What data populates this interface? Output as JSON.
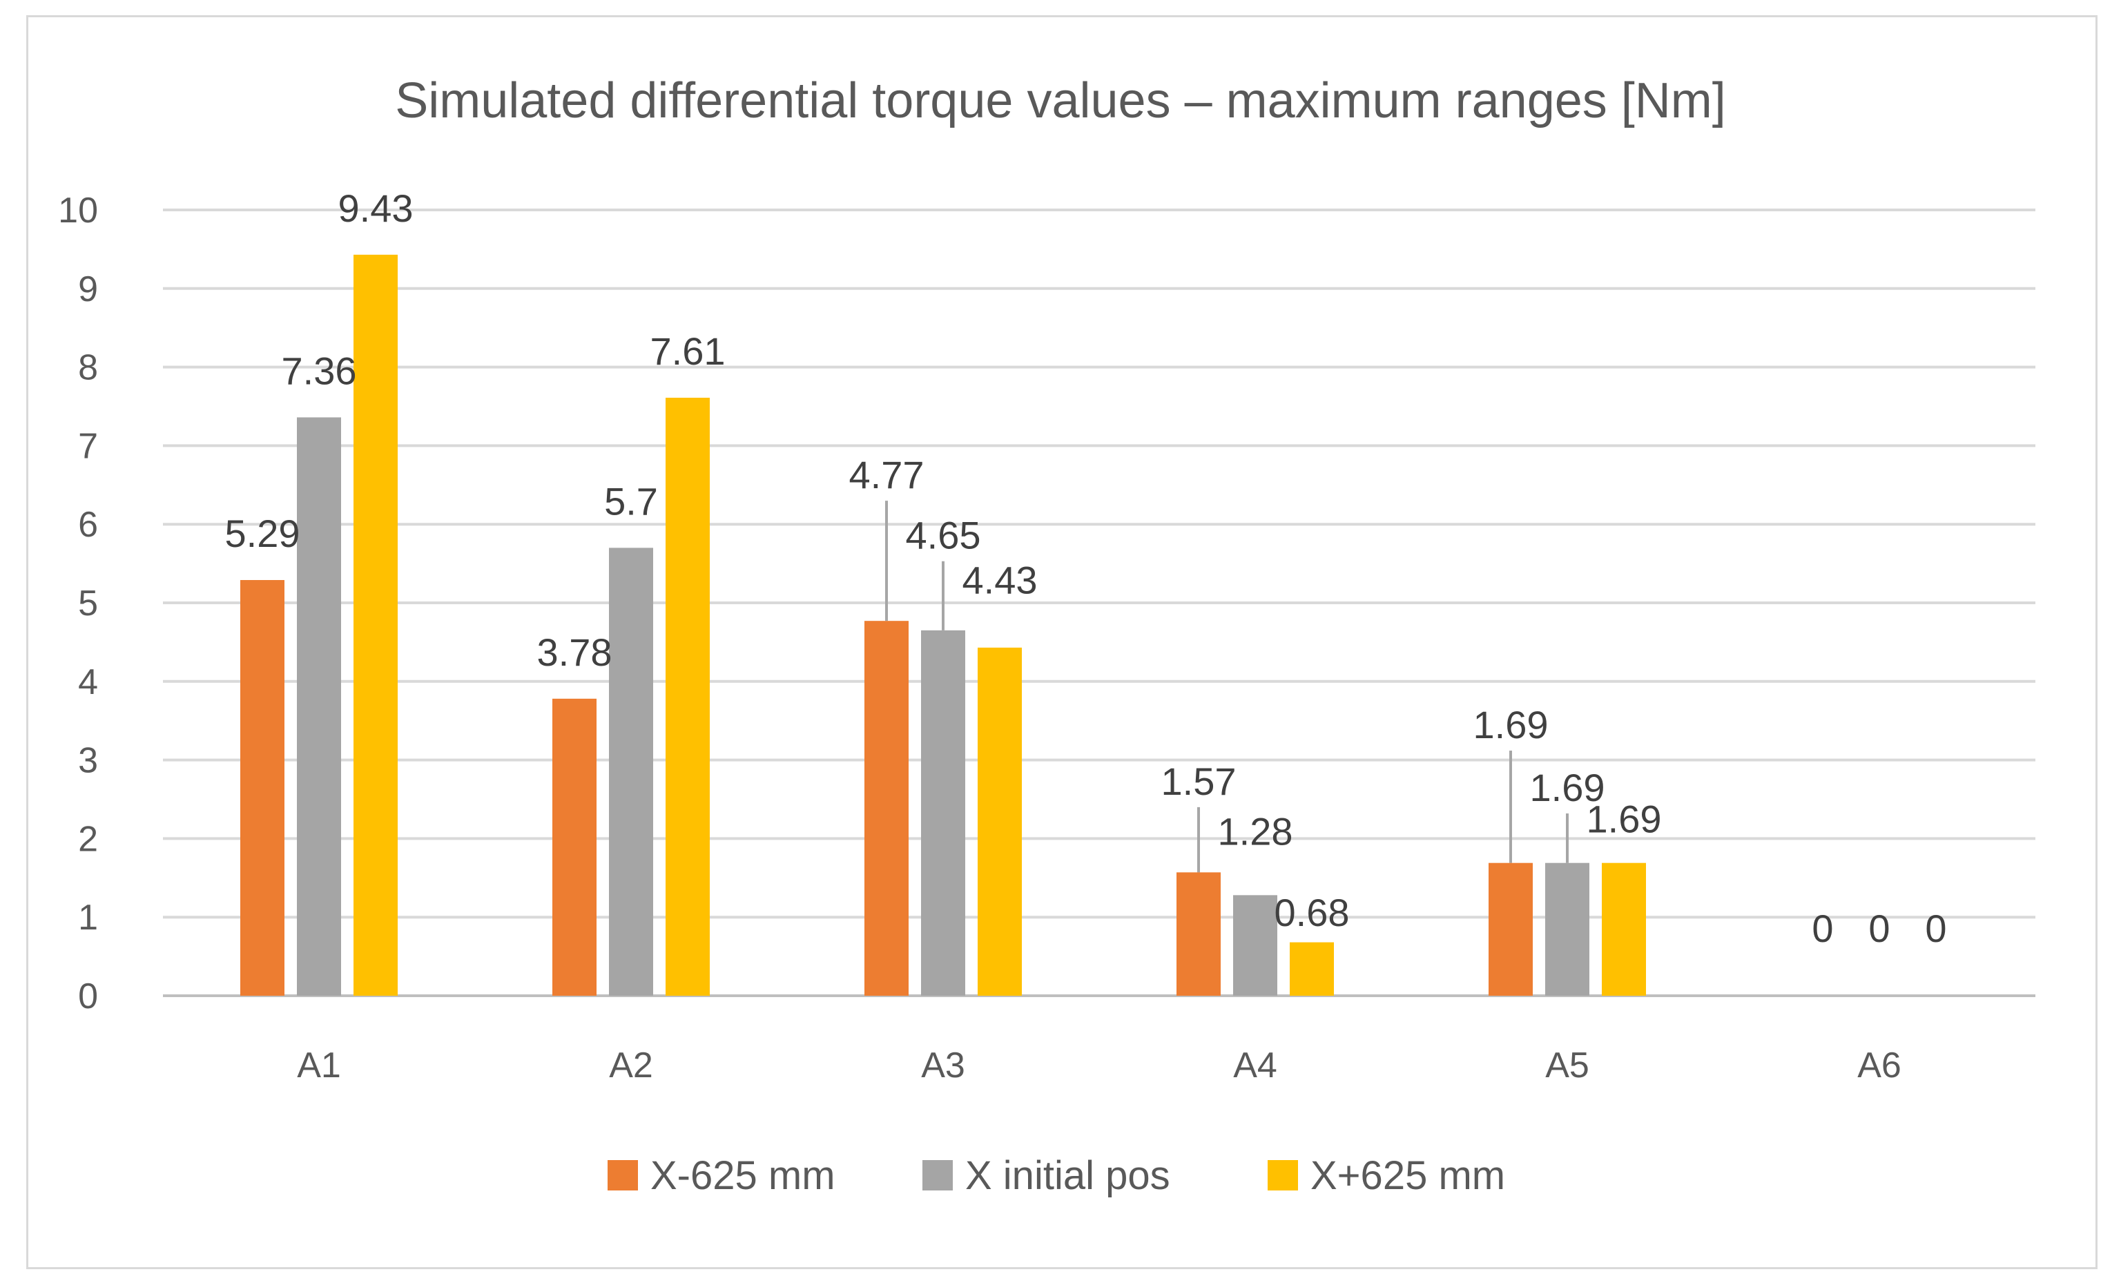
{
  "chart_data": {
    "type": "bar",
    "title": "Simulated differential torque values – maximum ranges [Nm]",
    "xlabel": "",
    "ylabel": "",
    "ylim": [
      0,
      10
    ],
    "yticks": [
      0,
      1,
      2,
      3,
      4,
      5,
      6,
      7,
      8,
      9,
      10
    ],
    "categories": [
      "A1",
      "A2",
      "A3",
      "A4",
      "A5",
      "A6"
    ],
    "series": [
      {
        "name": "X-625 mm",
        "color": "#ED7D31",
        "values": [
          5.29,
          3.78,
          4.77,
          1.57,
          1.69,
          0
        ],
        "labels": [
          "5.29",
          "3.78",
          "4.77",
          "1.57",
          "1.69",
          "0"
        ]
      },
      {
        "name": "X initial pos",
        "color": "#A5A5A5",
        "values": [
          7.36,
          5.7,
          4.65,
          1.28,
          1.69,
          0
        ],
        "labels": [
          "7.36",
          "5.7",
          "4.65",
          "1.28",
          "1.69",
          "0"
        ]
      },
      {
        "name": "X+625 mm",
        "color": "#FFC000",
        "values": [
          9.43,
          7.61,
          4.43,
          0.68,
          1.69,
          0
        ],
        "labels": [
          "9.43",
          "7.61",
          "4.43",
          "0.68",
          "1.69",
          "0"
        ]
      }
    ],
    "grid": true,
    "legend": "bottom"
  }
}
